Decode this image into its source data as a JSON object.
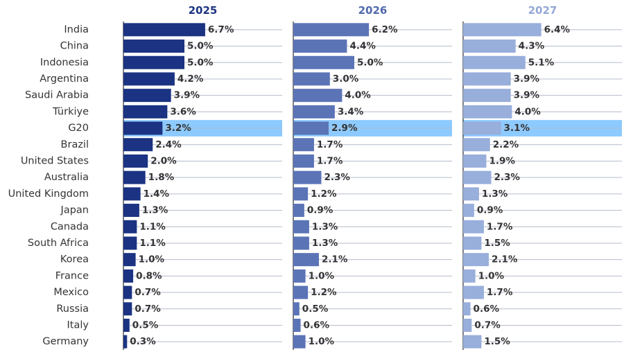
{
  "chart_data": {
    "type": "bar",
    "orientation": "horizontal",
    "categories": [
      "India",
      "China",
      "Indonesia",
      "Argentina",
      "Saudi Arabia",
      "Türkiye",
      "G20",
      "Brazil",
      "United States",
      "Australia",
      "United Kingdom",
      "Japan",
      "Canada",
      "South Africa",
      "Korea",
      "France",
      "Mexico",
      "Russia",
      "Italy",
      "Germany"
    ],
    "highlight_category": "G20",
    "highlight_color": "#8ccaff",
    "series": [
      {
        "name": "2025",
        "color": "#1b3382",
        "title_color": "#1b3382",
        "labels": [
          "6.7%",
          "5.0%",
          "5.0%",
          "4.2%",
          "3.9%",
          "3.6%",
          "3.2%",
          "2.4%",
          "2.0%",
          "1.8%",
          "1.4%",
          "1.3%",
          "1.1%",
          "1.1%",
          "1.0%",
          "0.8%",
          "0.7%",
          "0.7%",
          "0.5%",
          "0.3%"
        ],
        "values": [
          6.7,
          5.0,
          5.0,
          4.2,
          3.9,
          3.6,
          3.2,
          2.4,
          2.0,
          1.8,
          1.4,
          1.3,
          1.1,
          1.1,
          1.0,
          0.8,
          0.7,
          0.7,
          0.5,
          0.3
        ]
      },
      {
        "name": "2026",
        "color": "#5b74b6",
        "title_color": "#5068ab",
        "labels": [
          "6.2%",
          "4.4%",
          "5.0%",
          "3.0%",
          "4.0%",
          "3.4%",
          "2.9%",
          "1.7%",
          "1.7%",
          "2.3%",
          "1.2%",
          "0.9%",
          "1.3%",
          "1.3%",
          "2.1%",
          "1.0%",
          "1.2%",
          "0.5%",
          "0.6%",
          "1.0%"
        ],
        "values": [
          6.2,
          4.4,
          5.0,
          3.0,
          4.0,
          3.4,
          2.9,
          1.7,
          1.7,
          2.3,
          1.2,
          0.9,
          1.3,
          1.3,
          2.1,
          1.0,
          1.2,
          0.5,
          0.6,
          1.0
        ]
      },
      {
        "name": "2027",
        "color": "#98aedb",
        "title_color": "#93a8d6",
        "labels": [
          "6.4%",
          "4.3%",
          "5.1%",
          "3.9%",
          "3.9%",
          "4.0%",
          "3.1%",
          "2.2%",
          "1.9%",
          "2.3%",
          "1.3%",
          "0.9%",
          "1.7%",
          "1.5%",
          "2.1%",
          "1.0%",
          "1.7%",
          "0.6%",
          "0.7%",
          "1.5%"
        ],
        "values": [
          6.4,
          4.3,
          5.1,
          3.9,
          3.9,
          4.0,
          3.1,
          2.2,
          1.9,
          2.3,
          1.3,
          0.9,
          1.7,
          1.5,
          2.1,
          1.0,
          1.7,
          0.6,
          0.7,
          1.5
        ]
      }
    ],
    "xlim": [
      0,
      14
    ],
    "grid": true
  }
}
